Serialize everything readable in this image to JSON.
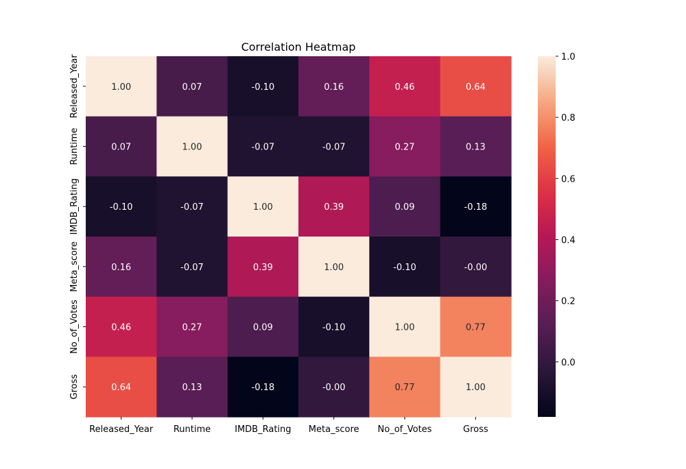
{
  "chart_data": {
    "type": "heatmap",
    "title": "Correlation Heatmap",
    "x_labels": [
      "Released_Year",
      "Runtime",
      "IMDB_Rating",
      "Meta_score",
      "No_of_Votes",
      "Gross"
    ],
    "y_labels": [
      "Released_Year",
      "Runtime",
      "IMDB_Rating",
      "Meta_score",
      "No_of_Votes",
      "Gross"
    ],
    "values": [
      [
        1.0,
        0.07,
        -0.1,
        0.16,
        0.46,
        0.64
      ],
      [
        0.07,
        1.0,
        -0.07,
        -0.07,
        0.27,
        0.13
      ],
      [
        -0.1,
        -0.07,
        1.0,
        0.39,
        0.09,
        -0.18
      ],
      [
        0.16,
        -0.07,
        0.39,
        1.0,
        -0.1,
        -0.0
      ],
      [
        0.46,
        0.27,
        0.09,
        -0.1,
        1.0,
        0.77
      ],
      [
        0.64,
        0.13,
        -0.18,
        -0.0,
        0.77,
        1.0
      ]
    ],
    "cell_labels": [
      [
        "1.00",
        "0.07",
        "-0.10",
        "0.16",
        "0.46",
        "0.64"
      ],
      [
        "0.07",
        "1.00",
        "-0.07",
        "-0.07",
        "0.27",
        "0.13"
      ],
      [
        "-0.10",
        "-0.07",
        "1.00",
        "0.39",
        "0.09",
        "-0.18"
      ],
      [
        "0.16",
        "-0.07",
        "0.39",
        "1.00",
        "-0.10",
        "-0.00"
      ],
      [
        "0.46",
        "0.27",
        "0.09",
        "-0.10",
        "1.00",
        "0.77"
      ],
      [
        "0.64",
        "0.13",
        "-0.18",
        "-0.00",
        "0.77",
        "1.00"
      ]
    ],
    "colorscale": "rocket",
    "vmin": -0.18,
    "vmax": 1.0,
    "colorbar_ticks": [
      "1.0",
      "0.8",
      "0.6",
      "0.4",
      "0.2",
      "0.0"
    ],
    "colorbar_tick_values": [
      1.0,
      0.8,
      0.6,
      0.4,
      0.2,
      0.0
    ],
    "grid": false,
    "legend": "colorbar-right"
  }
}
